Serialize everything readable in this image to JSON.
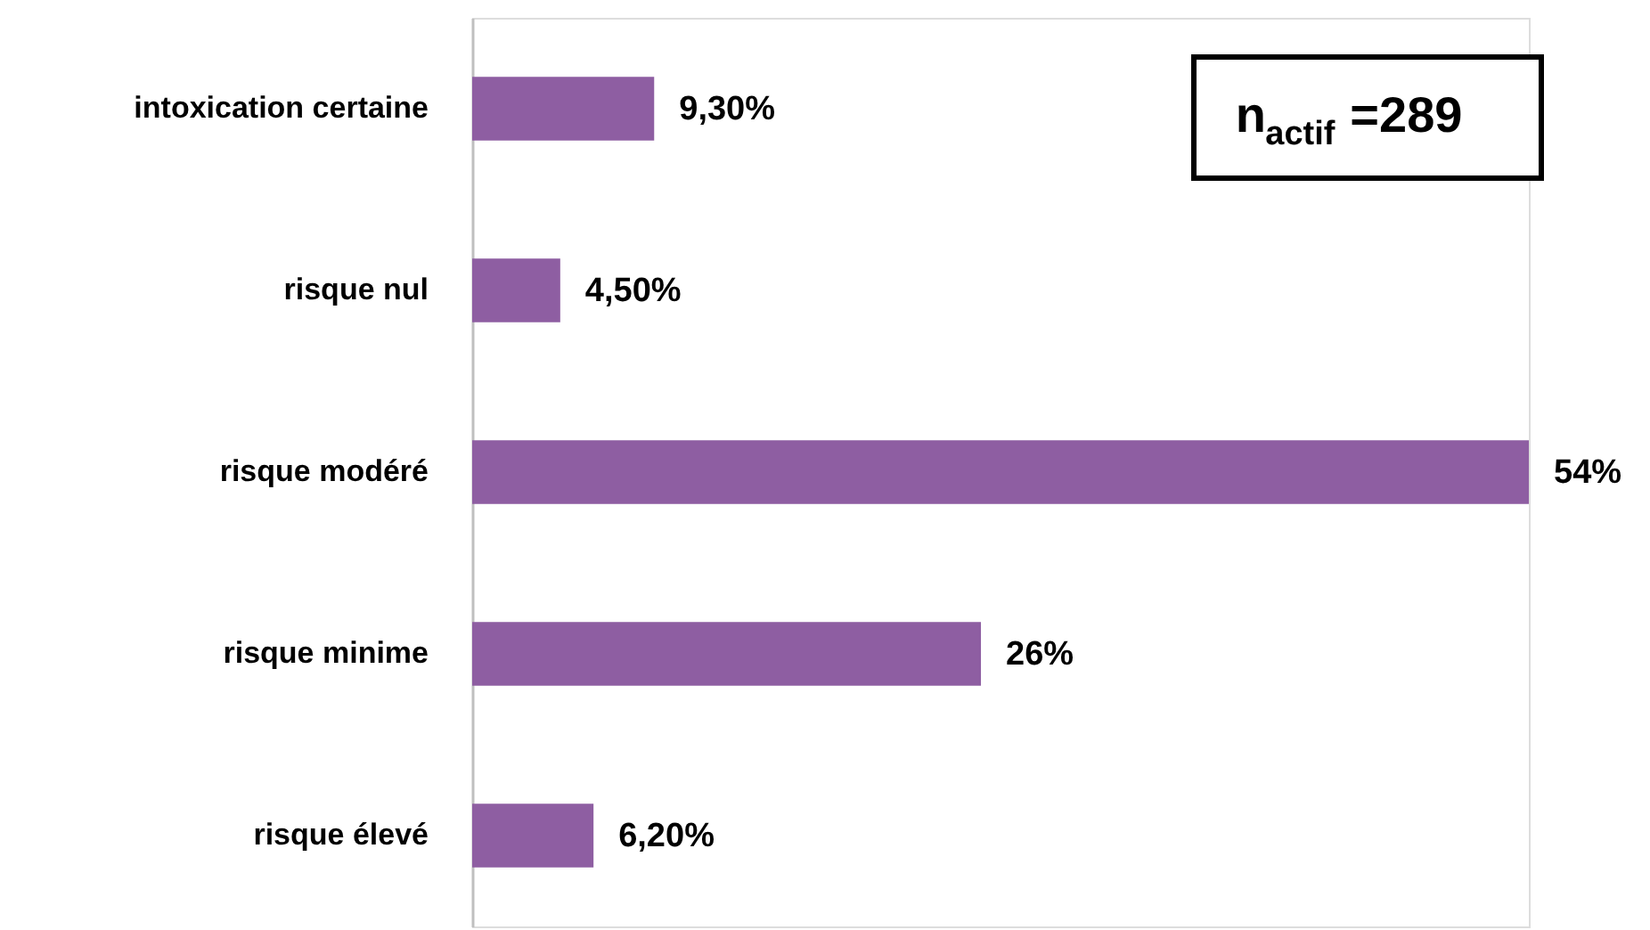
{
  "chart_data": {
    "type": "bar",
    "orientation": "horizontal",
    "categories": [
      "intoxication certaine",
      "risque nul",
      "risque modéré",
      "risque minime",
      "risque élevé"
    ],
    "values": [
      9.3,
      4.5,
      54,
      26,
      6.2
    ],
    "value_labels": [
      "9,30%",
      "4,50%",
      "54%",
      "26%",
      "6,20%"
    ],
    "color": "#8e5ea2",
    "annotations": [
      "n$_{actif}$ =289"
    ],
    "grid": false
  }
}
